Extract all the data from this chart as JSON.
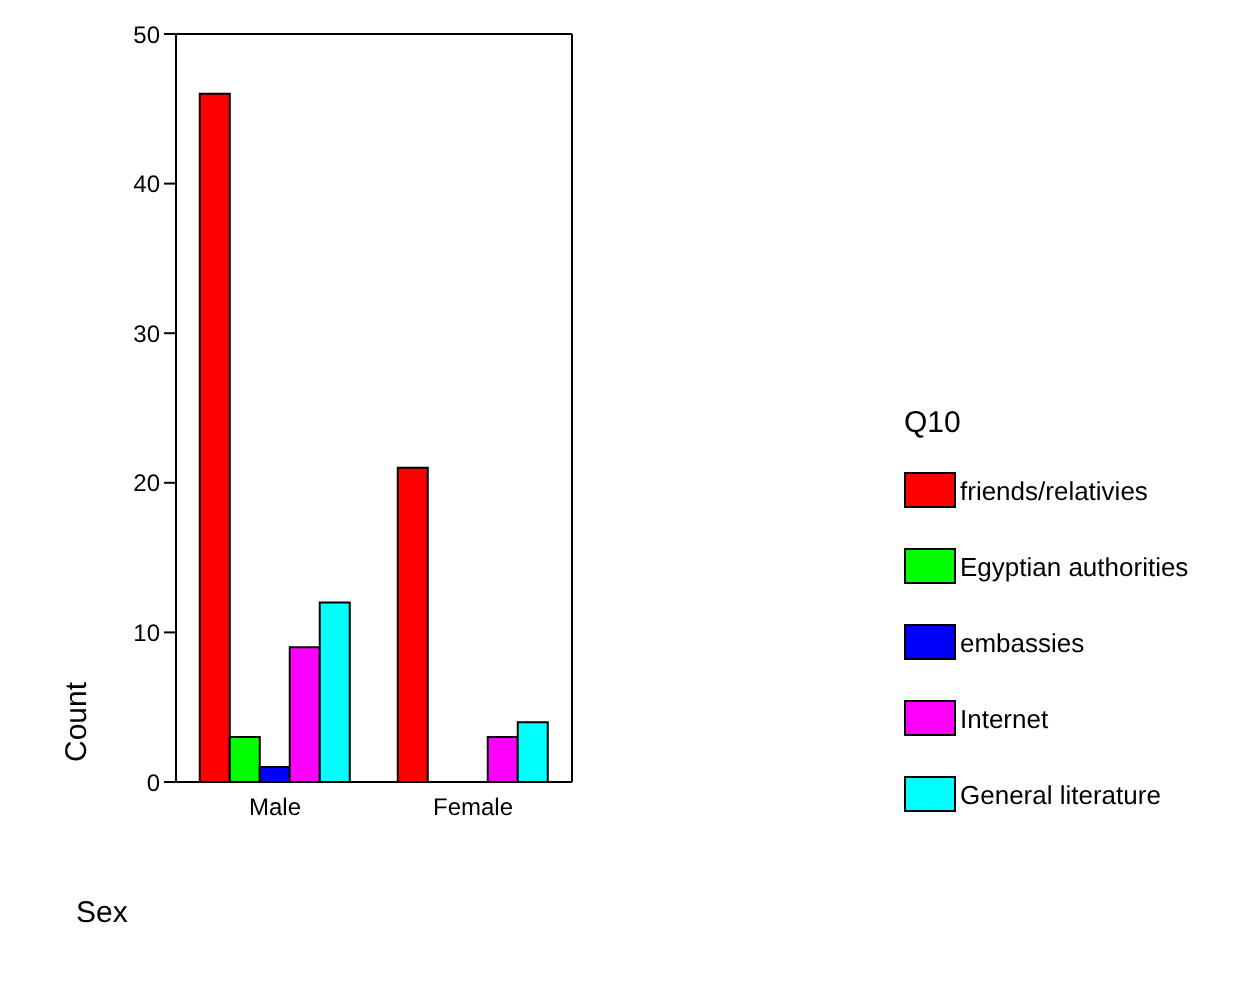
{
  "chart_data": {
    "type": "bar",
    "categories": [
      "Male",
      "Female"
    ],
    "xlabel": "Sex",
    "ylabel": "Count",
    "legend_title": "Q10",
    "legend": "right",
    "series": [
      {
        "name": "friends/relativies",
        "color": "#ff0000",
        "values": [
          46,
          21
        ]
      },
      {
        "name": "Egyptian authorities",
        "color": "#00ff00",
        "values": [
          3,
          0
        ]
      },
      {
        "name": "embassies",
        "color": "#0000ff",
        "values": [
          1,
          0
        ]
      },
      {
        "name": "Internet",
        "color": "#ff00ff",
        "values": [
          9,
          3
        ]
      },
      {
        "name": "General literature",
        "color": "#00ffff",
        "values": [
          12,
          4
        ]
      }
    ],
    "ylim": [
      0,
      50
    ],
    "yticks": [
      0,
      10,
      20,
      30,
      40,
      50
    ],
    "grid": false
  }
}
